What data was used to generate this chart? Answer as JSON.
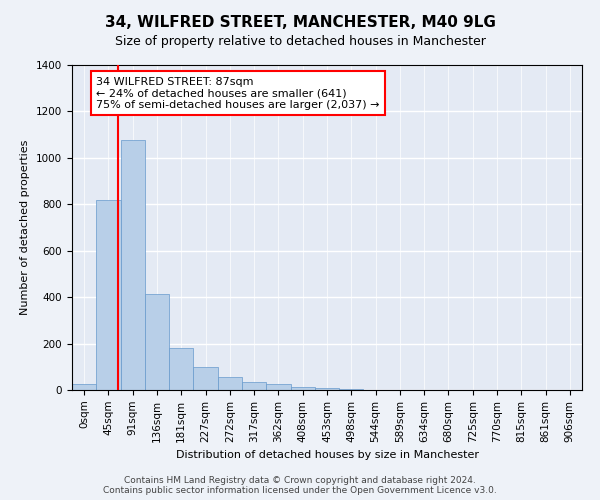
{
  "title": "34, WILFRED STREET, MANCHESTER, M40 9LG",
  "subtitle": "Size of property relative to detached houses in Manchester",
  "xlabel": "Distribution of detached houses by size in Manchester",
  "ylabel": "Number of detached properties",
  "bin_labels": [
    "0sqm",
    "45sqm",
    "91sqm",
    "136sqm",
    "181sqm",
    "227sqm",
    "272sqm",
    "317sqm",
    "362sqm",
    "408sqm",
    "453sqm",
    "498sqm",
    "544sqm",
    "589sqm",
    "634sqm",
    "680sqm",
    "725sqm",
    "770sqm",
    "815sqm",
    "861sqm",
    "906sqm"
  ],
  "bar_values": [
    25,
    820,
    1075,
    415,
    180,
    100,
    55,
    35,
    25,
    15,
    8,
    3,
    2,
    1,
    1,
    0,
    0,
    0,
    0,
    0,
    1
  ],
  "bar_color": "#b8cfe8",
  "bar_edge_color": "#6699cc",
  "vline_color": "red",
  "annotation_title": "34 WILFRED STREET: 87sqm",
  "annotation_line1": "← 24% of detached houses are smaller (641)",
  "annotation_line2": "75% of semi-detached houses are larger (2,037) →",
  "annotation_box_color": "red",
  "ylim": [
    0,
    1400
  ],
  "yticks": [
    0,
    200,
    400,
    600,
    800,
    1000,
    1200,
    1400
  ],
  "footer_line1": "Contains HM Land Registry data © Crown copyright and database right 2024.",
  "footer_line2": "Contains public sector information licensed under the Open Government Licence v3.0.",
  "bg_color": "#eef2f8",
  "plot_bg_color": "#e4eaf4",
  "grid_color": "white",
  "title_fontsize": 11,
  "subtitle_fontsize": 9,
  "xlabel_fontsize": 8,
  "ylabel_fontsize": 8,
  "tick_fontsize": 7.5,
  "annotation_fontsize": 8
}
